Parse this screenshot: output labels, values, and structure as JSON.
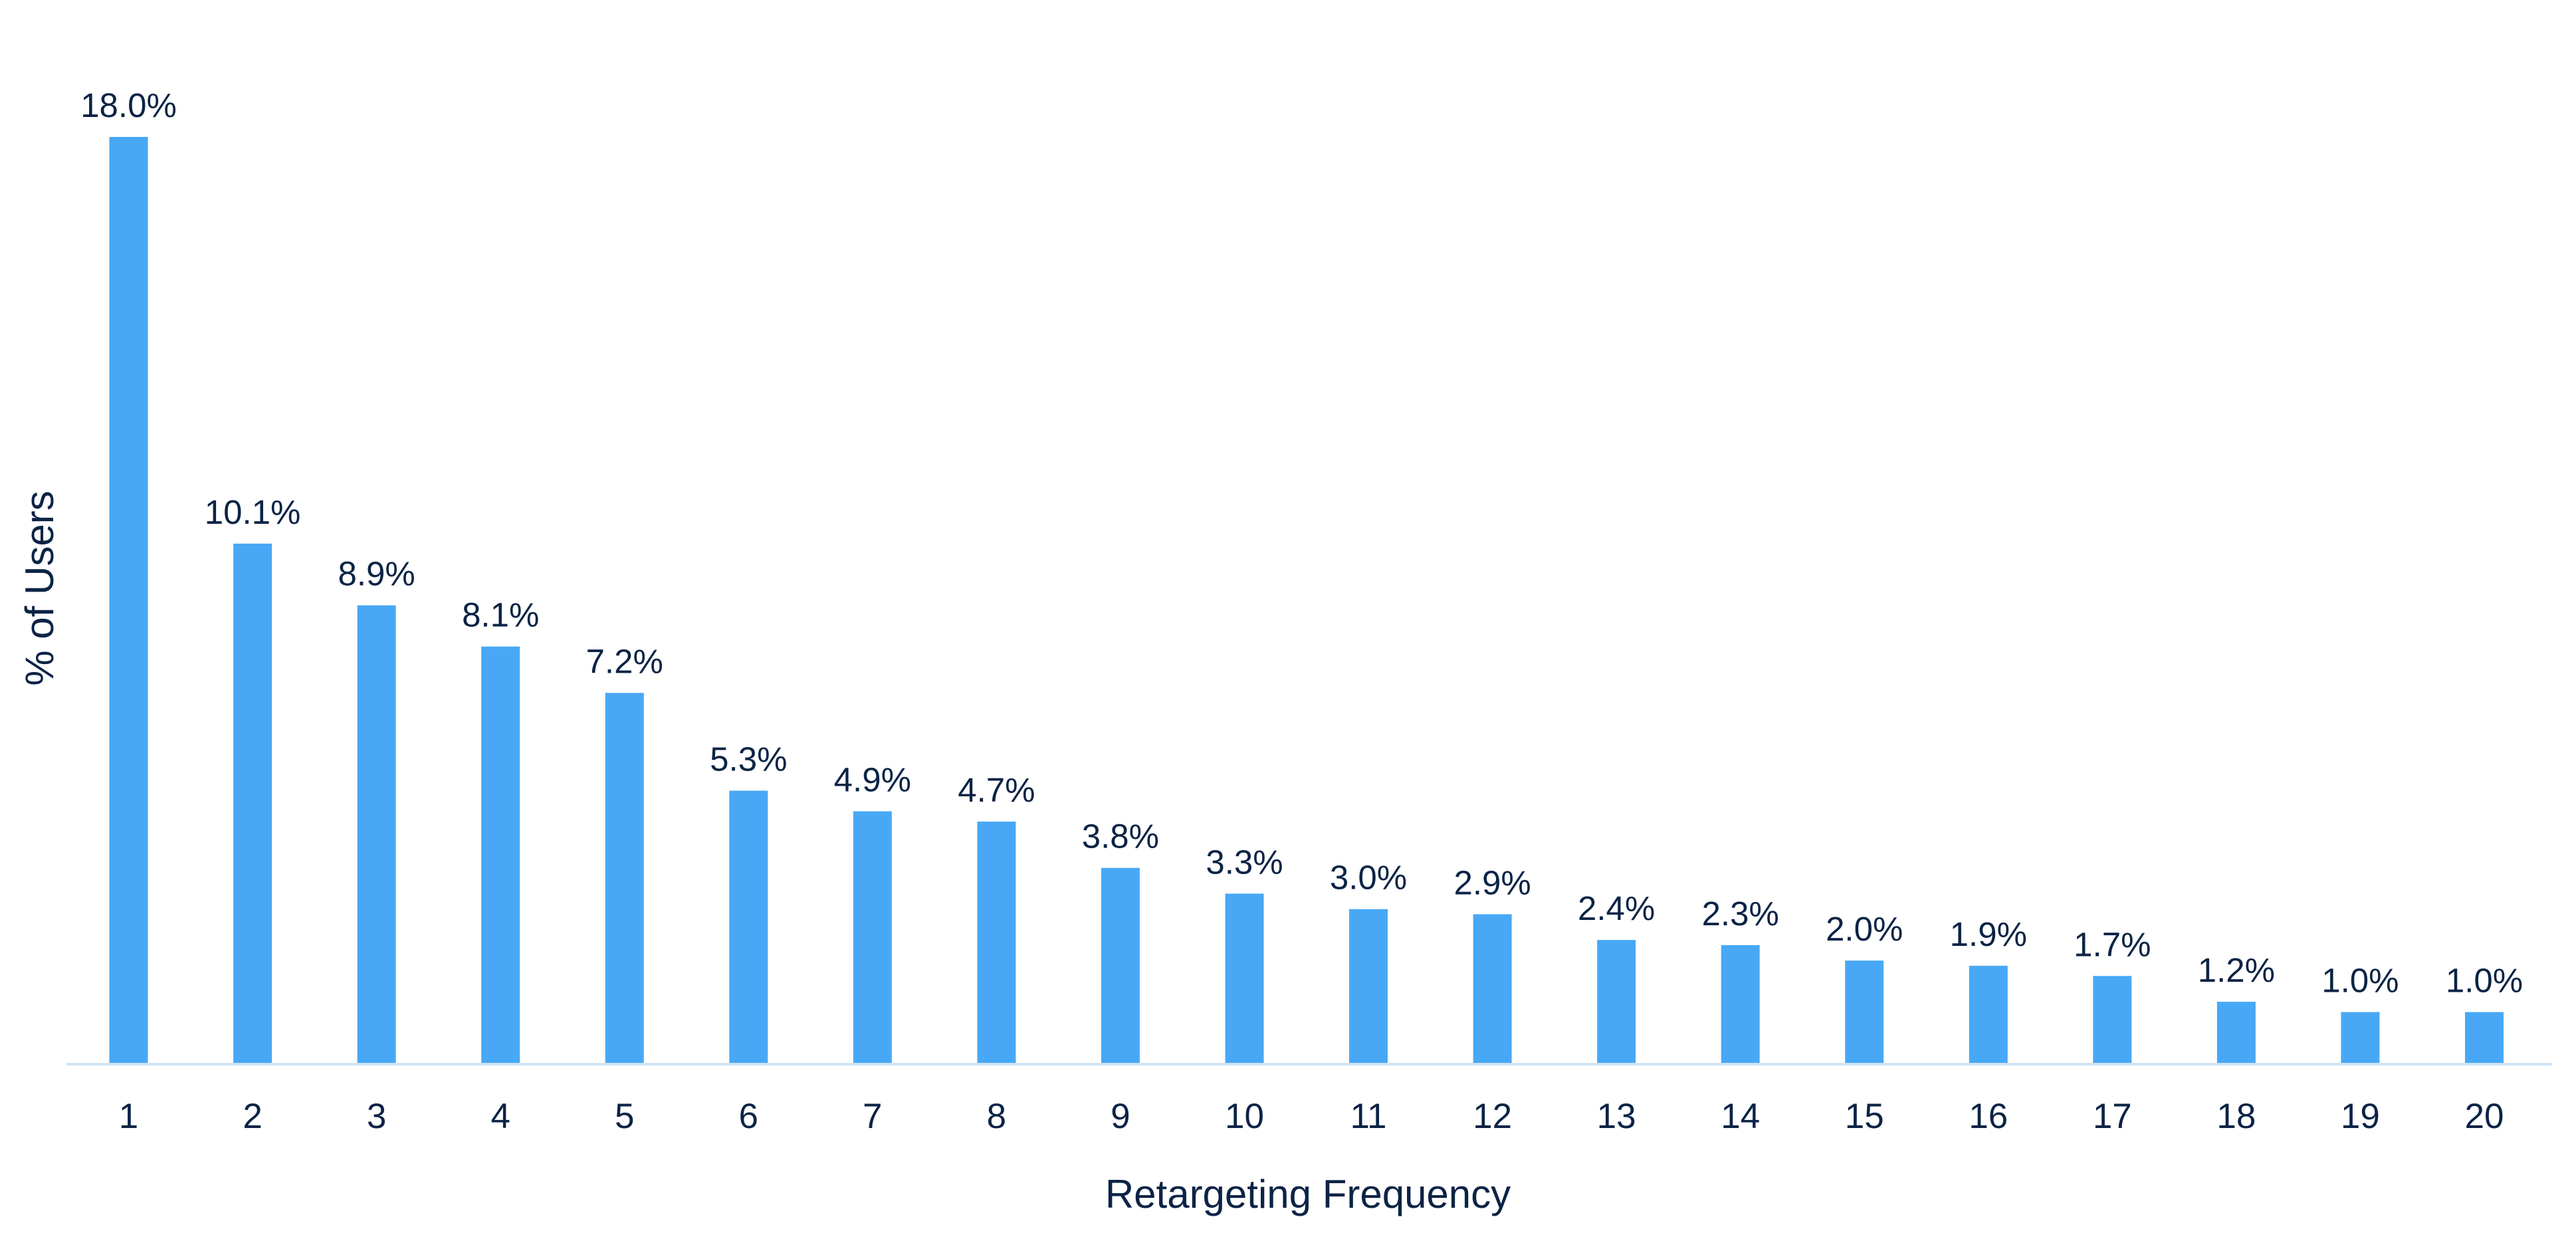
{
  "chart_data": {
    "type": "bar",
    "title": "",
    "xlabel": "Retargeting Frequency",
    "ylabel": "% of Users",
    "categories": [
      "1",
      "2",
      "3",
      "4",
      "5",
      "6",
      "7",
      "8",
      "9",
      "10",
      "11",
      "12",
      "13",
      "14",
      "15",
      "16",
      "17",
      "18",
      "19",
      "20"
    ],
    "values": [
      18.0,
      10.1,
      8.9,
      8.1,
      7.2,
      5.3,
      4.9,
      4.7,
      3.8,
      3.3,
      3.0,
      2.9,
      2.4,
      2.3,
      2.0,
      1.9,
      1.7,
      1.2,
      1.0,
      1.0
    ],
    "value_labels": [
      "18.0%",
      "10.1%",
      "8.9%",
      "8.1%",
      "7.2%",
      "5.3%",
      "4.9%",
      "4.7%",
      "3.8%",
      "3.3%",
      "3.0%",
      "2.9%",
      "2.4%",
      "2.3%",
      "2.0%",
      "1.9%",
      "1.7%",
      "1.2%",
      "1.0%",
      "1.0%"
    ],
    "ylim": [
      0,
      18.0
    ],
    "grid": false,
    "legend": "none",
    "colors": {
      "bar": "#48A8F5",
      "axis_line": "#CFE3F5",
      "text": "#0B2345"
    }
  }
}
